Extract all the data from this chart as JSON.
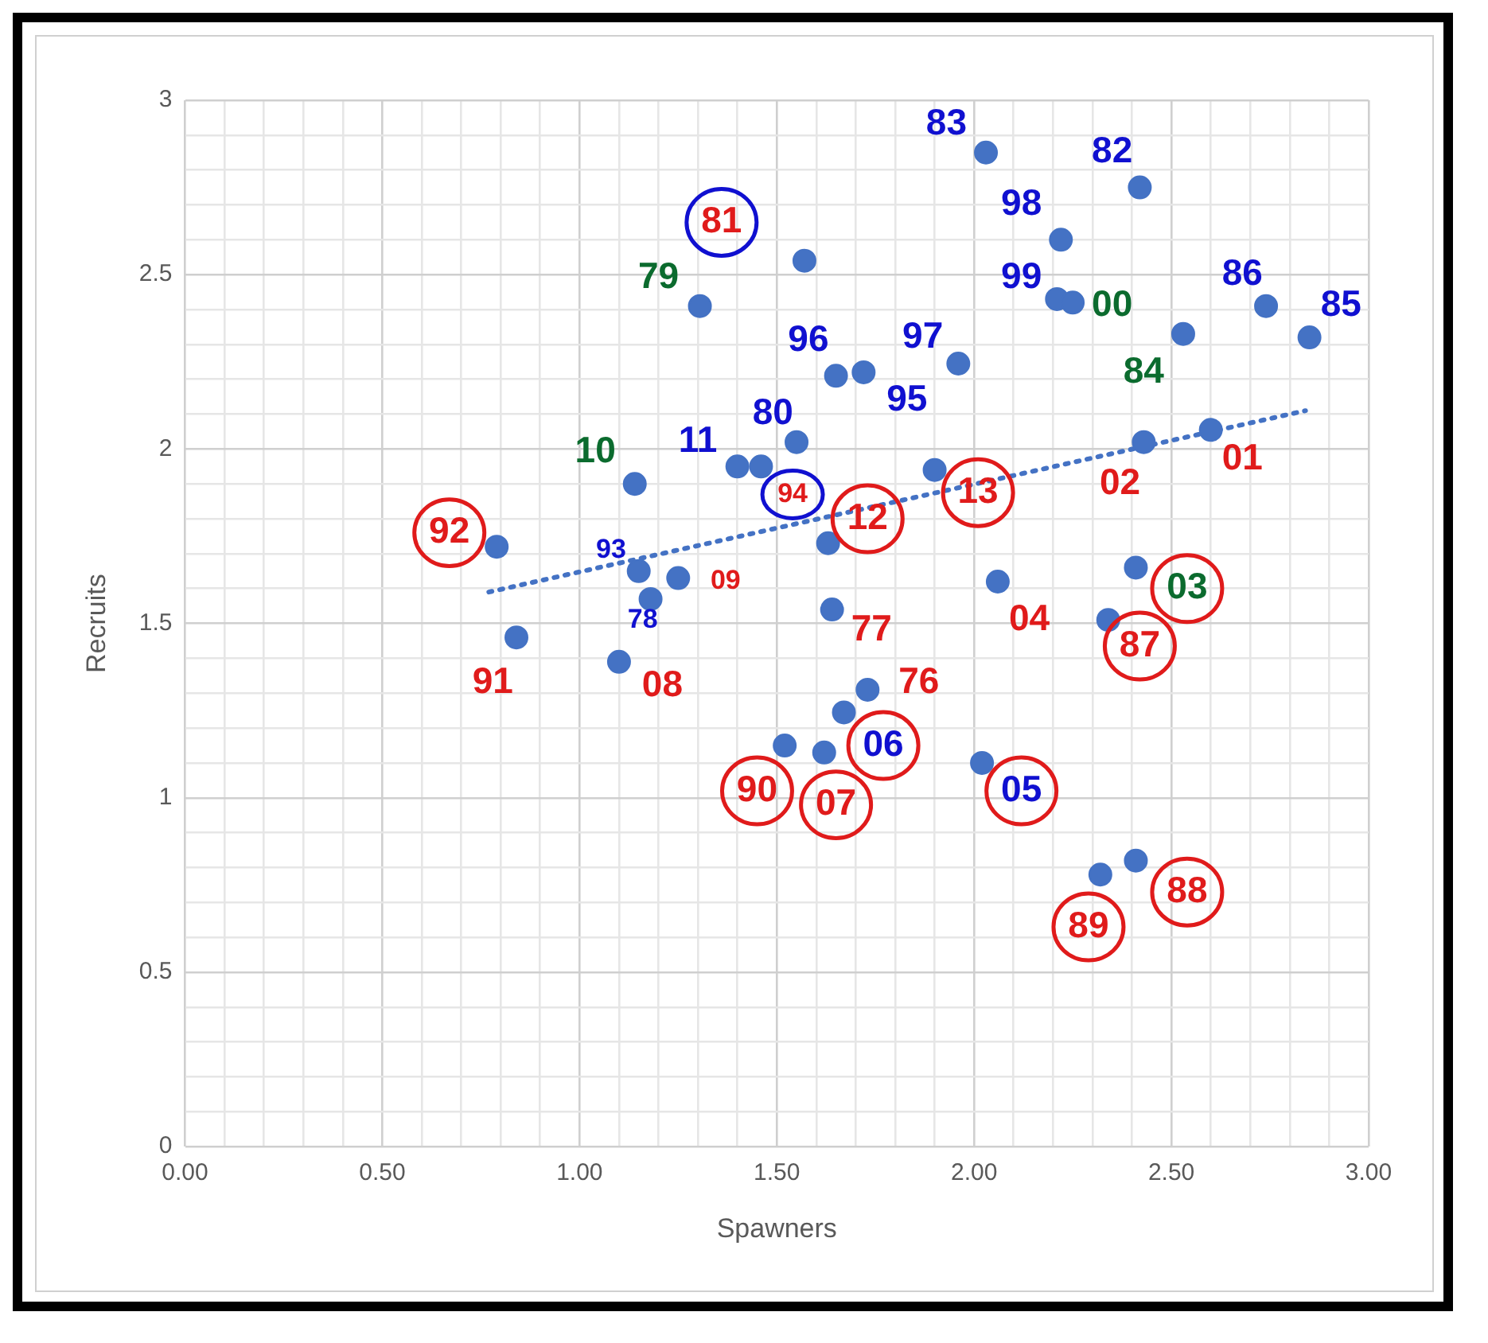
{
  "chart_data": {
    "type": "scatter",
    "xlabel": "Spawners",
    "ylabel": "Recruits",
    "xlim": [
      0,
      3
    ],
    "ylim": [
      0,
      3
    ],
    "xticks": [
      {
        "value": 0,
        "label": "0.00"
      },
      {
        "value": 0.1,
        "label": null
      },
      {
        "value": 0.2,
        "label": null
      },
      {
        "value": 0.3,
        "label": null
      },
      {
        "value": 0.4,
        "label": null
      },
      {
        "value": 0.5,
        "label": "0.50"
      },
      {
        "value": 0.6,
        "label": null
      },
      {
        "value": 0.7,
        "label": null
      },
      {
        "value": 0.8,
        "label": null
      },
      {
        "value": 0.9,
        "label": null
      },
      {
        "value": 1,
        "label": "1.00"
      },
      {
        "value": 1.1,
        "label": null
      },
      {
        "value": 1.2,
        "label": null
      },
      {
        "value": 1.3,
        "label": null
      },
      {
        "value": 1.4,
        "label": null
      },
      {
        "value": 1.5,
        "label": "1.50"
      },
      {
        "value": 1.6,
        "label": null
      },
      {
        "value": 1.7,
        "label": null
      },
      {
        "value": 1.8,
        "label": null
      },
      {
        "value": 1.9,
        "label": null
      },
      {
        "value": 2,
        "label": "2.00"
      },
      {
        "value": 2.1,
        "label": null
      },
      {
        "value": 2.2,
        "label": null
      },
      {
        "value": 2.3,
        "label": null
      },
      {
        "value": 2.4,
        "label": null
      },
      {
        "value": 2.5,
        "label": "2.50"
      },
      {
        "value": 2.6,
        "label": null
      },
      {
        "value": 2.7,
        "label": null
      },
      {
        "value": 2.8,
        "label": null
      },
      {
        "value": 2.9,
        "label": null
      },
      {
        "value": 3,
        "label": "3.00"
      }
    ],
    "yticks": [
      0,
      {
        "value": 0.1,
        "label": null
      },
      {
        "value": 0.2,
        "label": null
      },
      {
        "value": 0.3,
        "label": null
      },
      {
        "value": 0.4,
        "label": null
      },
      0.5,
      {
        "value": 0.6,
        "label": null
      },
      {
        "value": 0.7,
        "label": null
      },
      {
        "value": 0.8,
        "label": null
      },
      {
        "value": 0.9,
        "label": null
      },
      1,
      {
        "value": 1.1,
        "label": null
      },
      {
        "value": 1.2,
        "label": null
      },
      {
        "value": 1.3,
        "label": null
      },
      {
        "value": 1.4,
        "label": null
      },
      1.5,
      {
        "value": 1.6,
        "label": null
      },
      {
        "value": 1.7,
        "label": null
      },
      {
        "value": 1.8,
        "label": null
      },
      {
        "value": 1.9,
        "label": null
      },
      2,
      {
        "value": 2.1,
        "label": null
      },
      {
        "value": 2.2,
        "label": null
      },
      {
        "value": 2.3,
        "label": null
      },
      {
        "value": 2.4,
        "label": null
      },
      2.5,
      {
        "value": 2.6,
        "label": null
      },
      {
        "value": 2.7,
        "label": null
      },
      {
        "value": 2.8,
        "label": null
      },
      {
        "value": 2.9,
        "label": null
      },
      3
    ],
    "grid": true,
    "marker": "circle",
    "series": [
      {
        "type": "scatter",
        "color": "#4472c4",
        "x": [
          1.305,
          1.57,
          1.65,
          1.72,
          1.55,
          1.4,
          1.46,
          1.14,
          0.79,
          1.63,
          1.15,
          1.25,
          1.18,
          1.64,
          0.84,
          1.1,
          1.73,
          1.67,
          1.52,
          1.62,
          2.03,
          2.42,
          2.22,
          2.21,
          2.25,
          1.96,
          2.53,
          2.74,
          2.85,
          2.43,
          2.6,
          1.9,
          2.06,
          2.41,
          2.34,
          2.02,
          2.32,
          2.41
        ],
        "values": [
          2.41,
          2.54,
          2.21,
          2.22,
          2.02,
          1.95,
          1.95,
          1.9,
          1.72,
          1.73,
          1.65,
          1.63,
          1.57,
          1.54,
          1.46,
          1.39,
          1.31,
          1.245,
          1.15,
          1.13,
          2.85,
          2.75,
          2.6,
          2.43,
          2.42,
          2.245,
          2.33,
          2.41,
          2.32,
          2.02,
          2.055,
          1.94,
          1.62,
          1.66,
          1.51,
          1.1,
          0.78,
          0.82
        ]
      },
      {
        "type": "line",
        "color": "#4472c4",
        "line_style": "dotted",
        "marker": "none",
        "x": [
          0.77,
          2.84
        ],
        "values": [
          1.59,
          2.11
        ]
      }
    ],
    "annotations": [
      {
        "text": "79",
        "x": 1.305,
        "y": 2.41
      },
      {
        "text": "81",
        "x": 1.57,
        "y": 2.54
      },
      {
        "text": "96",
        "x": 1.65,
        "y": 2.21
      },
      {
        "text": "95",
        "x": 1.72,
        "y": 2.22
      },
      {
        "text": "80",
        "x": 1.55,
        "y": 2.02
      },
      {
        "text": "11",
        "x": 1.4,
        "y": 1.95
      },
      {
        "text": "10",
        "x": 1.14,
        "y": 1.9
      },
      {
        "text": "94",
        "x": 1.46,
        "y": 1.95
      },
      {
        "text": "92",
        "x": 0.79,
        "y": 1.72
      },
      {
        "text": "12",
        "x": 1.63,
        "y": 1.73
      },
      {
        "text": "93",
        "x": 1.15,
        "y": 1.65
      },
      {
        "text": "09",
        "x": 1.25,
        "y": 1.63
      },
      {
        "text": "78",
        "x": 1.18,
        "y": 1.57
      },
      {
        "text": "77",
        "x": 1.64,
        "y": 1.54
      },
      {
        "text": "91",
        "x": 0.84,
        "y": 1.46
      },
      {
        "text": "08",
        "x": 1.1,
        "y": 1.39
      },
      {
        "text": "76",
        "x": 1.73,
        "y": 1.31
      },
      {
        "text": "06",
        "x": 1.67,
        "y": 1.245
      },
      {
        "text": "90",
        "x": 1.52,
        "y": 1.15
      },
      {
        "text": "07",
        "x": 1.62,
        "y": 1.13
      },
      {
        "text": "83",
        "x": 2.03,
        "y": 2.85
      },
      {
        "text": "82",
        "x": 2.42,
        "y": 2.75
      },
      {
        "text": "98",
        "x": 2.22,
        "y": 2.6
      },
      {
        "text": "99",
        "x": 2.21,
        "y": 2.43
      },
      {
        "text": "00",
        "x": 2.25,
        "y": 2.42
      },
      {
        "text": "97",
        "x": 1.96,
        "y": 2.245
      },
      {
        "text": "84",
        "x": 2.53,
        "y": 2.33
      },
      {
        "text": "86",
        "x": 2.74,
        "y": 2.41
      },
      {
        "text": "85",
        "x": 2.85,
        "y": 2.32
      },
      {
        "text": "02",
        "x": 2.43,
        "y": 2.02
      },
      {
        "text": "01",
        "x": 2.6,
        "y": 2.055
      },
      {
        "text": "13",
        "x": 1.9,
        "y": 1.94
      },
      {
        "text": "04",
        "x": 2.06,
        "y": 1.62
      },
      {
        "text": "03",
        "x": 2.41,
        "y": 1.66
      },
      {
        "text": "87",
        "x": 2.34,
        "y": 1.51
      },
      {
        "text": "05",
        "x": 2.02,
        "y": 1.1
      },
      {
        "text": "89",
        "x": 2.32,
        "y": 0.78
      },
      {
        "text": "88",
        "x": 2.41,
        "y": 0.82
      }
    ]
  }
}
